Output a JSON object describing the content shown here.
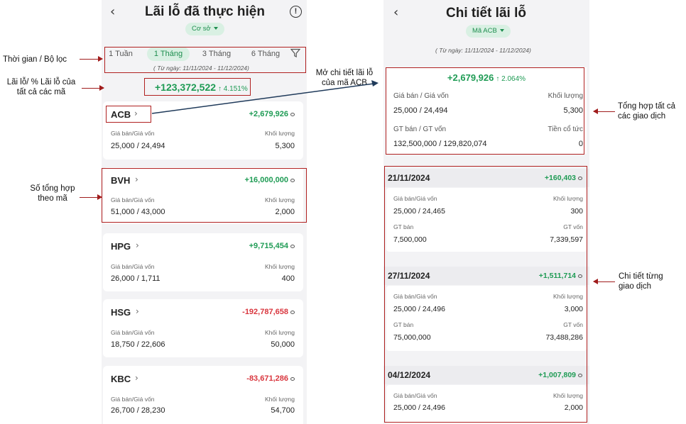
{
  "left": {
    "title": "Lãi lỗ đã thực hiện",
    "account_select": "Cơ sở",
    "tabs": [
      "1 Tuần",
      "1 Tháng",
      "3 Tháng",
      "6 Tháng"
    ],
    "active_tab": "1 Tháng",
    "date_range": "( Từ ngày: 11/11/2024 - 11/12/2024)",
    "total_pl": "+123,372,522",
    "total_pct": "↑ 4.151%",
    "label_price": "Giá bán/Giá vốn",
    "label_qty": "Khối lượng",
    "stocks": [
      {
        "code": "ACB",
        "pl": "+2,679,926",
        "prices": "25,000 / 24,494",
        "qty": "5,300",
        "sign": "pos"
      },
      {
        "code": "BVH",
        "pl": "+16,000,000",
        "prices": "51,000 / 43,000",
        "qty": "2,000",
        "sign": "pos"
      },
      {
        "code": "HPG",
        "pl": "+9,715,454",
        "prices": "26,000 / 1,711",
        "qty": "400",
        "sign": "pos"
      },
      {
        "code": "HSG",
        "pl": "-192,787,658",
        "prices": "18,750 / 22,606",
        "qty": "50,000",
        "sign": "neg"
      },
      {
        "code": "KBC",
        "pl": "-83,671,286",
        "prices": "26,700 / 28,230",
        "qty": "54,700",
        "sign": "neg"
      }
    ]
  },
  "right": {
    "title": "Chi tiết lãi lỗ",
    "stock_select": "Mã ACB",
    "date_range": "( Từ ngày: 11/11/2024 - 11/12/2024)",
    "summary": {
      "pl": "+2,679,926",
      "pct": "↑ 2.064%",
      "label_price": "Giá bán / Giá vốn",
      "label_qty": "Khối lượng",
      "prices": "25,000 / 24,494",
      "qty": "5,300",
      "label_value": "GT bán / GT vốn",
      "label_dividend": "Tiền cổ tức",
      "values": "132,500,000 / 129,820,074",
      "dividend": "0"
    },
    "label_price": "Giá bán/Giá vốn",
    "label_qty": "Khối lượng",
    "label_sell_value": "GT bán",
    "label_cost_value": "GT vốn",
    "transactions": [
      {
        "date": "21/11/2024",
        "pl": "+160,403",
        "prices": "25,000 / 24,465",
        "qty": "300",
        "sell_value": "7,500,000",
        "cost_value": "7,339,597"
      },
      {
        "date": "27/11/2024",
        "pl": "+1,511,714",
        "prices": "25,000 / 24,496",
        "qty": "3,000",
        "sell_value": "75,000,000",
        "cost_value": "73,488,286"
      },
      {
        "date": "04/12/2024",
        "pl": "+1,007,809",
        "prices": "25,000 / 24,496",
        "qty": "2,000"
      }
    ]
  },
  "annotations": {
    "time_filter": "Thời gian / Bộ lọc",
    "pl_all_line1": "Lãi lỗ/ % Lãi lỗ của",
    "pl_all_line2": "tất cả các mã",
    "open_detail_line1": "Mở chi tiết lãi lỗ",
    "open_detail_line2": "của mã ACB",
    "per_code_line1": "Số tổng hợp",
    "per_code_line2": "theo mã",
    "summary_all_line1": "Tổng hợp tất cả",
    "summary_all_line2": "các giao dịch",
    "per_tx_line1": "Chi tiết từng",
    "per_tx_line2": "giao dịch"
  },
  "colors": {
    "positive": "#1e9b54",
    "negative": "#d9363e",
    "accent_bg": "#d9f0e3",
    "annotation_box": "#b02020",
    "link_arrow": "#1f3a5a"
  }
}
